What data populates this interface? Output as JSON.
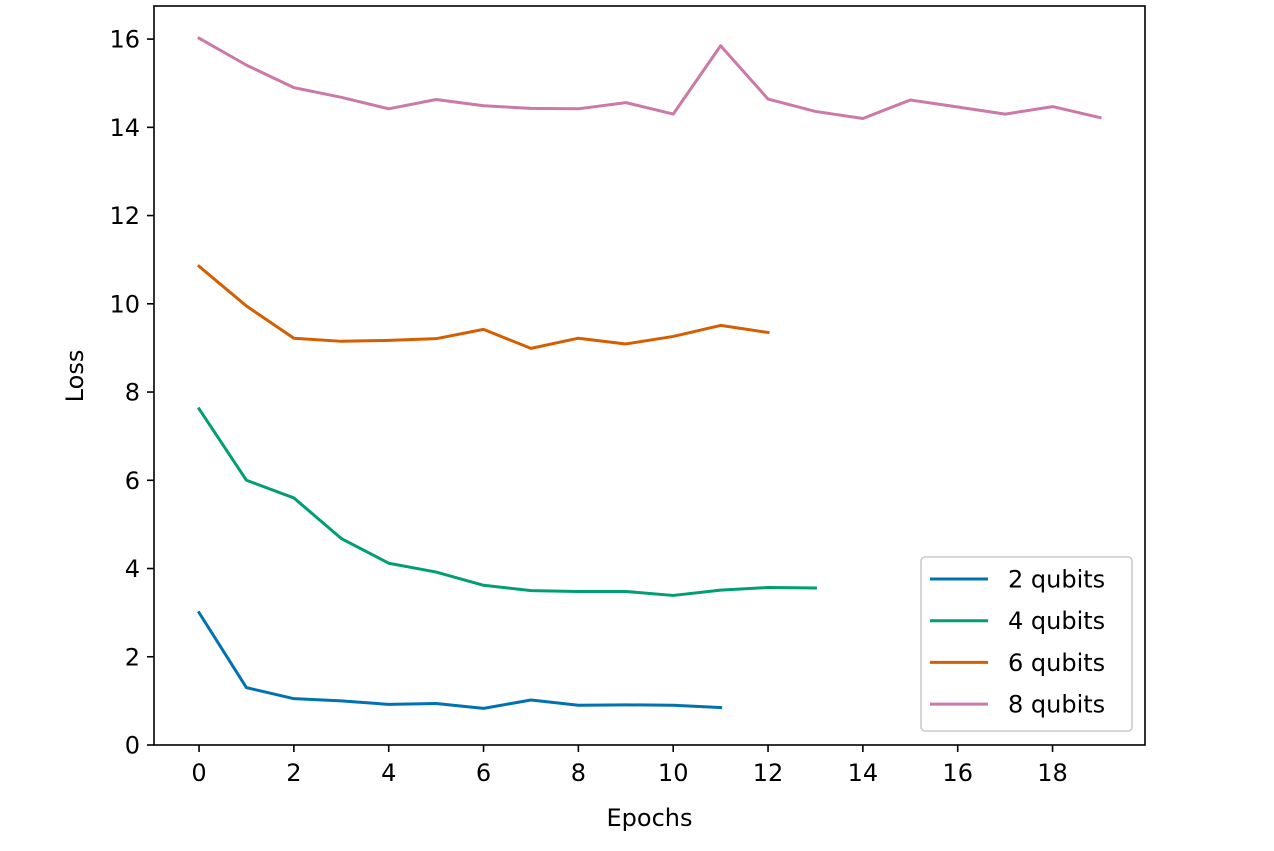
{
  "chart_data": {
    "type": "line",
    "title": "",
    "xlabel": "Epochs",
    "ylabel": "Loss",
    "xlim": [
      -0.95,
      19.95
    ],
    "ylim": [
      0,
      16.75
    ],
    "xticks": [
      0,
      2,
      4,
      6,
      8,
      10,
      12,
      14,
      16,
      18
    ],
    "yticks": [
      0,
      2,
      4,
      6,
      8,
      10,
      12,
      14,
      16
    ],
    "grid": false,
    "legend_position": "lower-right",
    "series": [
      {
        "name": "2 qubits",
        "color": "#0072b2",
        "x": [
          0,
          1,
          2,
          3,
          4,
          5,
          6,
          7,
          8,
          9,
          10,
          11
        ],
        "y": [
          3.0,
          1.3,
          1.05,
          1.0,
          0.92,
          0.94,
          0.83,
          1.02,
          0.9,
          0.91,
          0.9,
          0.85
        ]
      },
      {
        "name": "4 qubits",
        "color": "#009e73",
        "x": [
          0,
          1,
          2,
          3,
          4,
          5,
          6,
          7,
          8,
          9,
          10,
          11,
          12,
          13
        ],
        "y": [
          7.62,
          6.0,
          5.6,
          4.68,
          4.12,
          3.92,
          3.62,
          3.5,
          3.48,
          3.48,
          3.39,
          3.51,
          3.57,
          3.56
        ]
      },
      {
        "name": "6 qubits",
        "color": "#d55e00",
        "x": [
          0,
          1,
          2,
          3,
          4,
          5,
          6,
          7,
          8,
          9,
          10,
          11,
          12
        ],
        "y": [
          10.85,
          9.95,
          9.22,
          9.15,
          9.17,
          9.21,
          9.42,
          8.99,
          9.22,
          9.09,
          9.26,
          9.51,
          9.35
        ]
      },
      {
        "name": "8 qubits",
        "color": "#cc79a7",
        "x": [
          0,
          1,
          2,
          3,
          4,
          5,
          6,
          7,
          8,
          9,
          10,
          11,
          12,
          13,
          14,
          15,
          16,
          17,
          18,
          19
        ],
        "y": [
          16.02,
          15.41,
          14.9,
          14.68,
          14.42,
          14.63,
          14.49,
          14.43,
          14.42,
          14.56,
          14.3,
          15.85,
          14.64,
          14.36,
          14.2,
          14.62,
          14.46,
          14.3,
          14.47,
          14.22
        ]
      }
    ]
  }
}
